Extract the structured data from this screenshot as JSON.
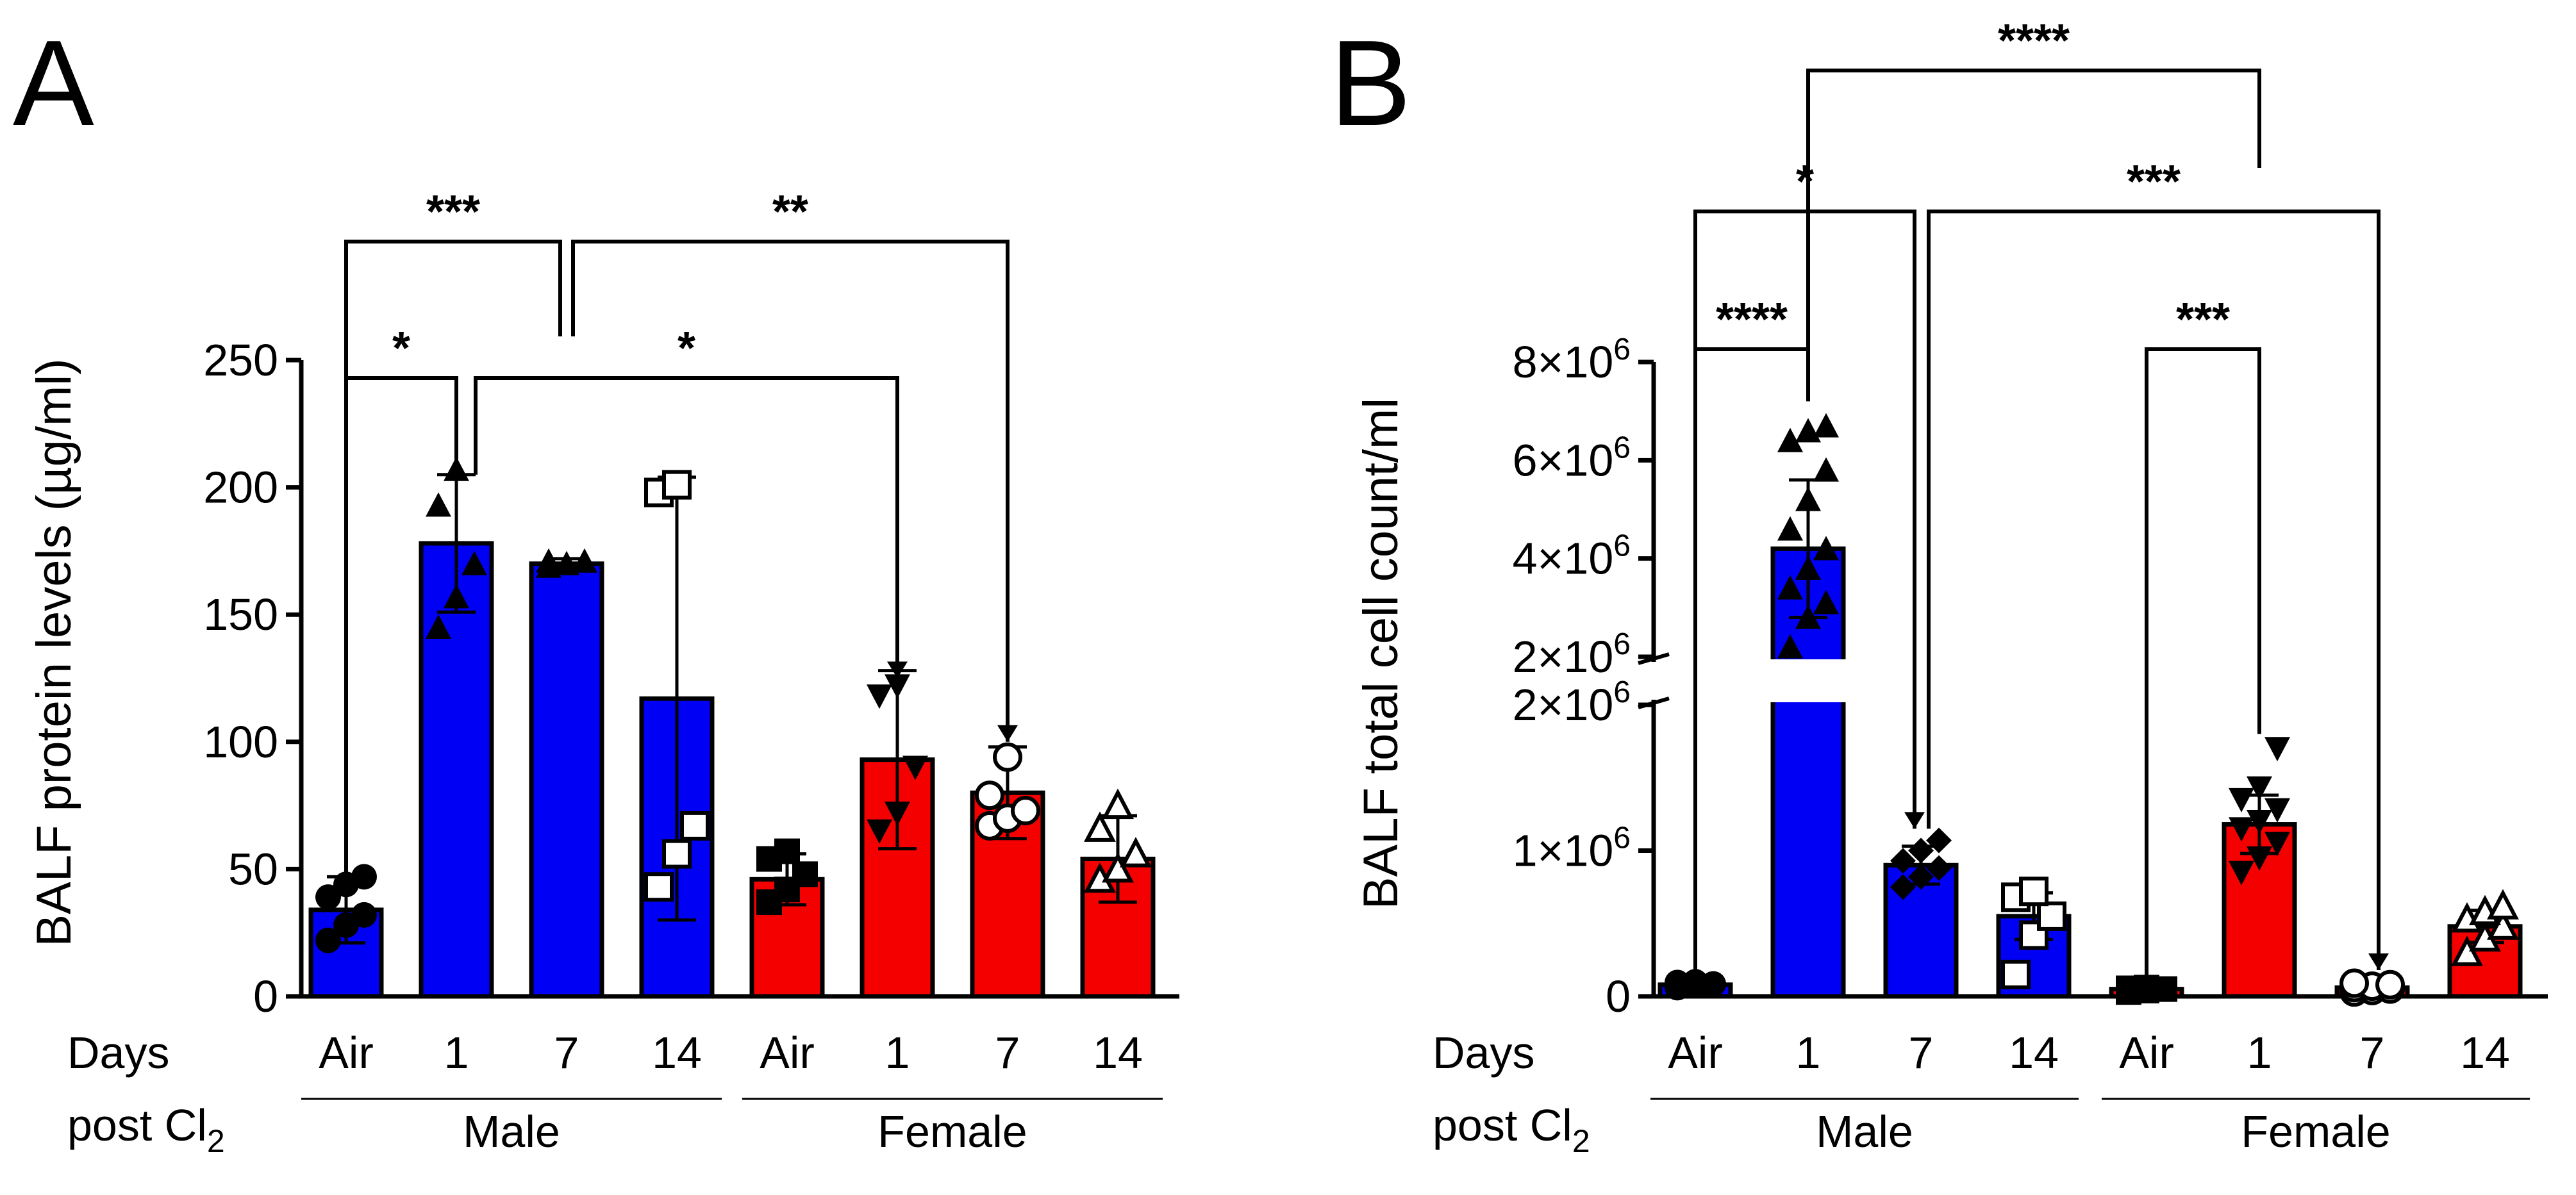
{
  "colors": {
    "male": "#0000f5",
    "female": "#f50000",
    "ink": "#000000"
  },
  "x_axis": {
    "days_label": "Days",
    "post_label": "post Cl",
    "post_sub": "2",
    "categories": [
      "Air",
      "1",
      "7",
      "14",
      "Air",
      "1",
      "7",
      "14"
    ],
    "groups": [
      "Male",
      "Female"
    ]
  },
  "chart_data": [
    {
      "panel": "A",
      "type": "bar",
      "ylabel": "BALF protein levels (µg/ml)",
      "ylim": [
        0,
        250
      ],
      "yticks": [
        "0",
        "50",
        "100",
        "150",
        "200",
        "250"
      ],
      "categories": [
        "Air",
        "1",
        "7",
        "14",
        "Air",
        "1",
        "7",
        "14"
      ],
      "groups": [
        "Male",
        "Male",
        "Male",
        "Male",
        "Female",
        "Female",
        "Female",
        "Female"
      ],
      "values": [
        34,
        178,
        170,
        117,
        46,
        93,
        80,
        54
      ],
      "sd": [
        13,
        27,
        2,
        87,
        10,
        35,
        18,
        17
      ],
      "markers": [
        "circle",
        "triangle",
        "triangle",
        "open-square",
        "square",
        "inv-triangle",
        "open-circle",
        "open-triangle"
      ],
      "points": [
        [
          22,
          28,
          32,
          39,
          44,
          47
        ],
        [
          145,
          157,
          170,
          193,
          207
        ],
        [
          169,
          170,
          171,
          171
        ],
        [
          43,
          56,
          67,
          198,
          201
        ],
        [
          37,
          42,
          48,
          54,
          57
        ],
        [
          65,
          72,
          90,
          118,
          122
        ],
        [
          67,
          70,
          73,
          79,
          94
        ],
        [
          46,
          50,
          56,
          66,
          75
        ]
      ],
      "significance": [
        {
          "from": 0,
          "to": 1,
          "label": "*"
        },
        {
          "from": 1,
          "to": 5,
          "label": "*"
        },
        {
          "from": 0,
          "to": 2,
          "label": "***"
        },
        {
          "from": 2,
          "to": 6,
          "label": "**"
        }
      ]
    },
    {
      "panel": "B",
      "type": "bar",
      "ylabel": "BALF total cell count/ml",
      "axis_break": {
        "lower_max": 2000000,
        "upper_min": 2000000,
        "upper_max": 8000000
      },
      "yticks_lower": [
        "0",
        "1×10",
        "2×10"
      ],
      "yticks_upper": [
        "2×10",
        "4×10",
        "6×10",
        "8×10"
      ],
      "ytick_exponent": "6",
      "categories": [
        "Air",
        "1",
        "7",
        "14",
        "Air",
        "1",
        "7",
        "14"
      ],
      "groups": [
        "Male",
        "Male",
        "Male",
        "Male",
        "Female",
        "Female",
        "Female",
        "Female"
      ],
      "values": [
        80000,
        4200000,
        900000,
        550000,
        50000,
        1180000,
        60000,
        480000
      ],
      "sd": [
        20000,
        1400000,
        130000,
        160000,
        20000,
        200000,
        15000,
        110000
      ],
      "markers": [
        "circle",
        "triangle",
        "diamond",
        "open-square",
        "square",
        "inv-triangle",
        "open-circle",
        "open-triangle"
      ],
      "points": [
        [
          60000,
          75000,
          85000,
          95000,
          100000
        ],
        [
          2200000,
          2800000,
          3100000,
          3400000,
          3800000,
          4200000,
          4600000,
          5200000,
          5800000,
          6400000,
          6600000,
          6700000
        ],
        [
          750000,
          820000,
          880000,
          930000,
          1000000,
          1070000
        ],
        [
          150000,
          420000,
          550000,
          680000,
          720000
        ],
        [
          30000,
          40000,
          50000,
          55000,
          60000
        ],
        [
          850000,
          950000,
          1050000,
          1150000,
          1200000,
          1280000,
          1350000,
          1430000,
          1700000
        ],
        [
          30000,
          40000,
          50000,
          60000,
          70000,
          80000,
          90000
        ],
        [
          300000,
          400000,
          480000,
          530000,
          580000,
          620000
        ]
      ],
      "significance": [
        {
          "from": 0,
          "to": 1,
          "label": "****"
        },
        {
          "from": 0,
          "to": 2,
          "label": "*"
        },
        {
          "from": 1,
          "to": 5,
          "label": "****"
        },
        {
          "from": 2,
          "to": 6,
          "label": "***"
        },
        {
          "from": 4,
          "to": 5,
          "label": "***"
        }
      ]
    }
  ]
}
